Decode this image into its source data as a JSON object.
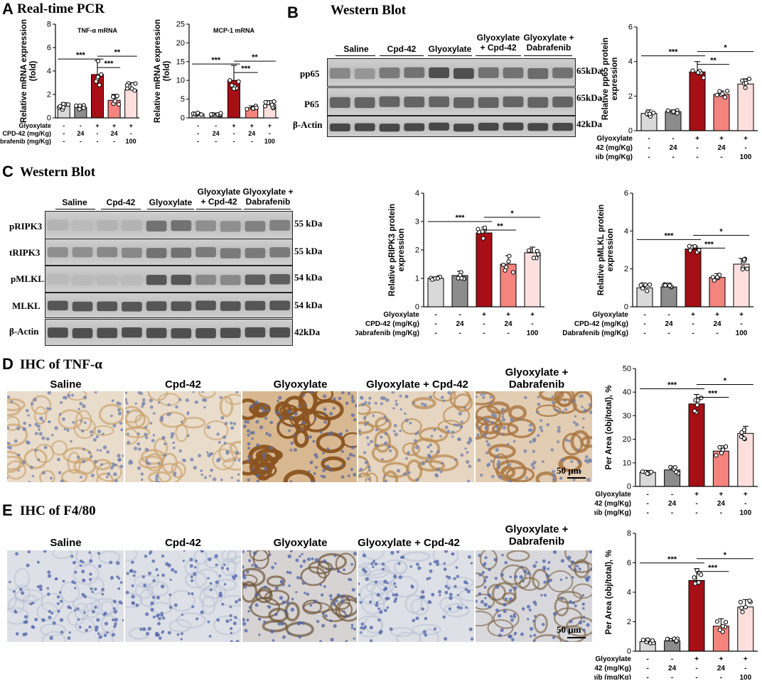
{
  "panels": {
    "A": {
      "letter": "A",
      "title": "Real-time PCR"
    },
    "B": {
      "letter": "B",
      "title": "Western Blot"
    },
    "C": {
      "letter": "C",
      "title": "Western Blot"
    },
    "D": {
      "letter": "D",
      "title": "IHC of TNF-α"
    },
    "E": {
      "letter": "E",
      "title": "IHC of F4/80"
    }
  },
  "blot_lanes": [
    "Saline",
    "Cpd-42",
    "Glyoxylate",
    "Glyoxylate + Cpd-42",
    "Glyoxylate + Dabrafenib"
  ],
  "blot_lanes_C": [
    "Saline",
    "Cpd-42",
    "Glyoxylate",
    "Glyoxylate + Cpd-42",
    "Glyoxylate + Dabrafenib"
  ],
  "blot_B_bands": [
    {
      "name": "pp65",
      "size": "65kDa"
    },
    {
      "name": "P65",
      "size": "65kDa"
    },
    {
      "name": "β-Actin",
      "size": "42kDa"
    }
  ],
  "blot_C_bands": [
    {
      "name": "pRIPK3",
      "size": "55 kDa"
    },
    {
      "name": "tRIPK3",
      "size": "55 kDa"
    },
    {
      "name": "pMLKL",
      "size": "54 kDa"
    },
    {
      "name": "MLKL",
      "size": "54 kDa"
    },
    {
      "name": "β-Actin",
      "size": "42kDa"
    }
  ],
  "ihc_groups": [
    "Saline",
    "Cpd-42",
    "Glyoxylate",
    "Glyoxylate + Cpd-42",
    "Glyoxylate + Dabrafenib"
  ],
  "scale_bar": "50 μm",
  "treatment_rows": {
    "labels": [
      "Glyoxylate",
      "CPD-42 (mg/Kg)",
      "Dabrafenib (mg/Kg)"
    ],
    "values": [
      [
        "-",
        "-",
        "+",
        "+",
        "+"
      ],
      [
        "-",
        "24",
        "-",
        "24",
        "-"
      ],
      [
        "-",
        "-",
        "-",
        "-",
        "100"
      ]
    ]
  },
  "colors": {
    "saline": "#d9d9d9",
    "cpd42": "#8c8c8c",
    "glyox": "#a50f15",
    "glyox_cpd": "#f4847d",
    "glyox_dab": "#fde0de"
  },
  "chart_data": [
    {
      "id": "A1",
      "type": "bar",
      "title": "TNF-α mRNA",
      "ylabel": "Relative mRNA expression (fold)",
      "ylim": [
        0,
        8
      ],
      "yticks": [
        0,
        2,
        4,
        6,
        8
      ],
      "values": [
        1.0,
        0.9,
        3.7,
        1.5,
        2.4
      ],
      "errors": [
        0.3,
        0.2,
        1.2,
        0.5,
        0.6
      ],
      "sig": [
        {
          "from": 0,
          "to": 2,
          "label": "***"
        },
        {
          "from": 2,
          "to": 3,
          "label": "***"
        },
        {
          "from": 2,
          "to": 4,
          "label": "**"
        }
      ]
    },
    {
      "id": "A2",
      "type": "bar",
      "title": "MCP-1 mRNA",
      "ylabel": "Relative mRNA expression (fold)",
      "ylim": [
        0,
        25
      ],
      "yticks": [
        0,
        5,
        10,
        15,
        20,
        25
      ],
      "values": [
        1.0,
        1.0,
        10.0,
        2.7,
        3.5
      ],
      "errors": [
        0.4,
        0.3,
        4.0,
        0.5,
        1.1
      ],
      "sig": [
        {
          "from": 0,
          "to": 2,
          "label": "***"
        },
        {
          "from": 2,
          "to": 3,
          "label": "***"
        },
        {
          "from": 2,
          "to": 4,
          "label": "**"
        }
      ]
    },
    {
      "id": "B1",
      "type": "bar",
      "ylabel": "Relative pp65 protein expression",
      "ylim": [
        0,
        6
      ],
      "yticks": [
        0,
        2,
        4,
        6
      ],
      "values": [
        1.0,
        1.1,
        3.4,
        2.1,
        2.7
      ],
      "errors": [
        0.2,
        0.1,
        0.6,
        0.2,
        0.3
      ],
      "sig": [
        {
          "from": 0,
          "to": 2,
          "label": "***"
        },
        {
          "from": 2,
          "to": 3,
          "label": "**"
        },
        {
          "from": 2,
          "to": 4,
          "label": "*"
        }
      ]
    },
    {
      "id": "C1",
      "type": "bar",
      "ylabel": "Relative pRIPK3 protein expression",
      "ylim": [
        0,
        4
      ],
      "yticks": [
        0,
        1,
        2,
        3,
        4
      ],
      "values": [
        1.0,
        1.1,
        2.6,
        1.5,
        1.9
      ],
      "errors": [
        0.05,
        0.15,
        0.2,
        0.3,
        0.2
      ],
      "sig": [
        {
          "from": 0,
          "to": 2,
          "label": "***"
        },
        {
          "from": 2,
          "to": 3,
          "label": "**"
        },
        {
          "from": 2,
          "to": 4,
          "label": "*"
        }
      ]
    },
    {
      "id": "C2",
      "type": "bar",
      "ylabel": "Relative pMLKL protein expression",
      "ylim": [
        0,
        6
      ],
      "yticks": [
        0,
        2,
        4,
        6
      ],
      "values": [
        1.0,
        1.05,
        3.05,
        1.55,
        2.25
      ],
      "errors": [
        0.2,
        0.2,
        0.2,
        0.2,
        0.3
      ],
      "sig": [
        {
          "from": 0,
          "to": 2,
          "label": "***"
        },
        {
          "from": 2,
          "to": 3,
          "label": "***"
        },
        {
          "from": 2,
          "to": 4,
          "label": "*"
        }
      ]
    },
    {
      "id": "D1",
      "type": "bar",
      "ylabel": "Per Area (obj/total), %",
      "ylim": [
        0,
        50
      ],
      "yticks": [
        0,
        10,
        20,
        30,
        40,
        50
      ],
      "values": [
        6,
        7,
        35,
        15,
        22.5
      ],
      "errors": [
        0.8,
        1.5,
        4,
        2,
        3
      ],
      "sig": [
        {
          "from": 0,
          "to": 2,
          "label": "***"
        },
        {
          "from": 2,
          "to": 3,
          "label": "***"
        },
        {
          "from": 2,
          "to": 4,
          "label": "*"
        }
      ]
    },
    {
      "id": "E1",
      "type": "bar",
      "ylabel": "Per Area (obj/total), %",
      "ylim": [
        0,
        8
      ],
      "yticks": [
        0,
        2,
        4,
        6,
        8
      ],
      "values": [
        0.65,
        0.7,
        4.8,
        1.7,
        3.0
      ],
      "errors": [
        0.2,
        0.15,
        0.8,
        0.5,
        0.5
      ],
      "sig": [
        {
          "from": 0,
          "to": 2,
          "label": "***"
        },
        {
          "from": 2,
          "to": 3,
          "label": "***"
        },
        {
          "from": 2,
          "to": 4,
          "label": "*"
        }
      ]
    }
  ]
}
